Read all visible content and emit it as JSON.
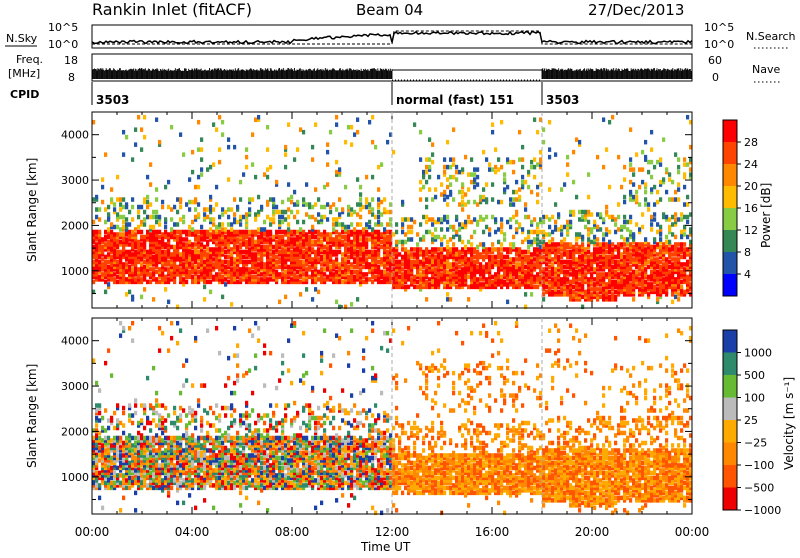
{
  "header": {
    "station": "Rankin Inlet (fitACF)",
    "beam": "Beam 04",
    "date": "27/Dec/2013"
  },
  "nsky_panel": {
    "left_label": "N.Sky",
    "right_label": "N.Search",
    "ticks_left": [
      "10^5",
      "10^0"
    ],
    "ticks_right": [
      "10^5",
      "10^0"
    ]
  },
  "freq_panel": {
    "left_label_line1": "Freq.",
    "left_label_line2": "[MHz]",
    "right_label": "Nave",
    "ticks_left": [
      "18",
      "8"
    ],
    "ticks_right": [
      "60",
      "0"
    ]
  },
  "cpid": {
    "label": "CPID",
    "segments": [
      {
        "start_hour": 0,
        "end_hour": 12,
        "text": "3503"
      },
      {
        "start_hour": 12,
        "end_hour": 18,
        "text": "normal (fast) 151"
      },
      {
        "start_hour": 18,
        "end_hour": 24,
        "text": "3503"
      }
    ]
  },
  "chart_data": [
    {
      "type": "heatmap",
      "ylabel": "Slant Range [km]",
      "yticks": [
        "4000",
        "3000",
        "2000",
        "1000"
      ],
      "ylim": [
        180,
        4500
      ],
      "xlim": [
        0,
        24
      ],
      "colorbar": {
        "label": "Power [dB]",
        "ticks": [
          "28",
          "24",
          "20",
          "16",
          "12",
          "8",
          "4"
        ],
        "colors": [
          "#ff0000",
          "#ff4400",
          "#ff8800",
          "#ffbb00",
          "#88cc44",
          "#338855",
          "#2255aa",
          "#0000ff"
        ]
      },
      "regions": [
        {
          "hours": [
            0,
            12
          ],
          "range_km": [
            600,
            1900
          ],
          "level": "high power"
        },
        {
          "hours": [
            12,
            18
          ],
          "range_km": [
            600,
            1600
          ],
          "level": "high power"
        },
        {
          "hours": [
            18,
            24
          ],
          "range_km": [
            400,
            1600
          ],
          "level": "high power"
        }
      ]
    },
    {
      "type": "heatmap",
      "ylabel": "Slant Range [km]",
      "xlabel": "Time UT",
      "yticks": [
        "4000",
        "3000",
        "2000",
        "1000"
      ],
      "xticks": [
        "00:00",
        "04:00",
        "08:00",
        "12:00",
        "16:00",
        "20:00",
        "00:00"
      ],
      "ylim": [
        180,
        4500
      ],
      "xlim": [
        0,
        24
      ],
      "colorbar": {
        "label": "Velocity [m s⁻¹]",
        "ticks": [
          "1000",
          "500",
          "100",
          "25",
          "−25",
          "−100",
          "−500",
          "−1000"
        ],
        "colors": [
          "#1a3fa8",
          "#2d8a6a",
          "#66bb33",
          "#bbbbbb",
          "#ffaa00",
          "#ff8800",
          "#ff5500",
          "#ee0000"
        ]
      },
      "regions": [
        {
          "hours": [
            0,
            12
          ],
          "range_km": [
            700,
            1800
          ],
          "level": "mixed"
        },
        {
          "hours": [
            12,
            24
          ],
          "range_km": [
            600,
            2000
          ],
          "level": "negative"
        }
      ]
    }
  ]
}
